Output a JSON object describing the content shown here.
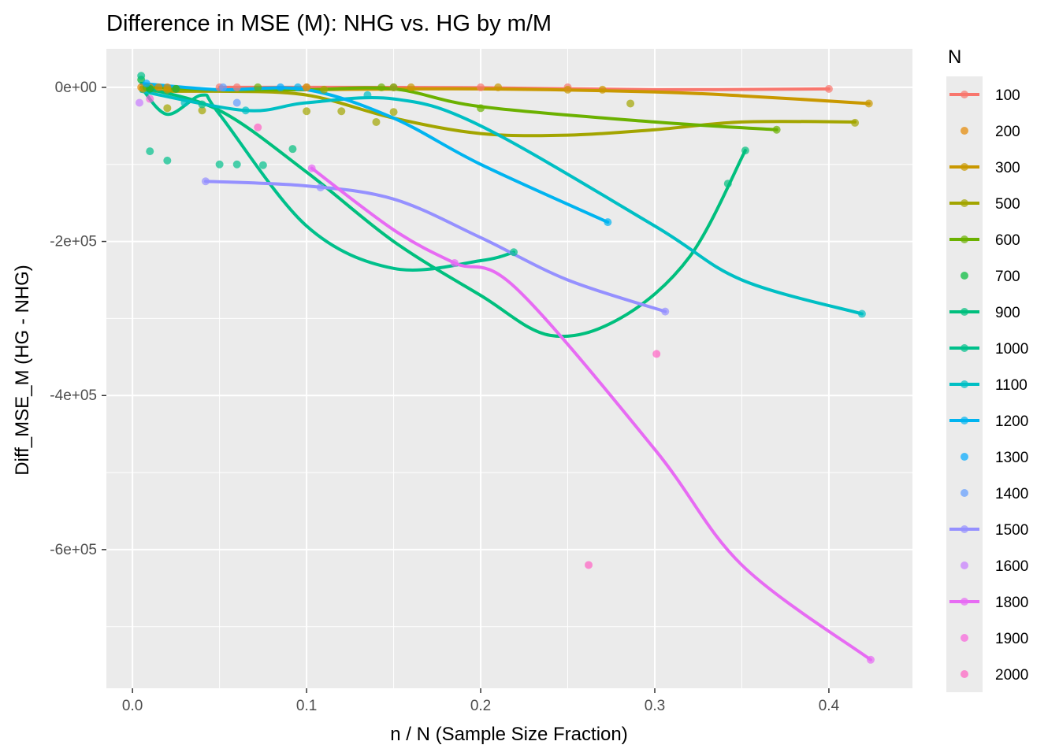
{
  "chart_data": {
    "type": "scatter",
    "title": "Difference in MSE (M): NHG vs. HG by m/M",
    "xlabel": "n / N (Sample Size Fraction)",
    "ylabel": "Diff_MSE_M (HG - NHG)",
    "xlim": [
      -0.015,
      0.448
    ],
    "ylim": [
      -780000,
      50000
    ],
    "x_ticks": [
      0.0,
      0.1,
      0.2,
      0.3,
      0.4
    ],
    "x_tick_labels": [
      "0.0",
      "0.1",
      "0.2",
      "0.3",
      "0.4"
    ],
    "y_ticks": [
      0,
      -200000,
      -400000,
      -600000
    ],
    "y_tick_labels": [
      "0e+00",
      "-2e+05",
      "-4e+05",
      "-6e+05"
    ],
    "grid": true,
    "legend_title": "N",
    "legend_position": "right",
    "series": [
      {
        "name": "100",
        "color": "#F8766D",
        "line": true,
        "points": [
          [
            0.05,
            0
          ],
          [
            0.06,
            0
          ],
          [
            0.1,
            0
          ],
          [
            0.15,
            0
          ],
          [
            0.2,
            0
          ],
          [
            0.25,
            0
          ],
          [
            0.4,
            -2000
          ]
        ],
        "curve": [
          [
            0.05,
            0
          ],
          [
            0.1,
            0
          ],
          [
            0.2,
            -500
          ],
          [
            0.3,
            -3000
          ],
          [
            0.4,
            -2000
          ]
        ]
      },
      {
        "name": "200",
        "color": "#E58700",
        "line": false,
        "points": [
          [
            0.005,
            0
          ],
          [
            0.01,
            0
          ],
          [
            0.015,
            0
          ],
          [
            0.02,
            0
          ],
          [
            0.025,
            -2000
          ]
        ]
      },
      {
        "name": "300",
        "color": "#C99800",
        "line": true,
        "points": [
          [
            0.006,
            -2000
          ],
          [
            0.02,
            -3000
          ],
          [
            0.1,
            0
          ],
          [
            0.16,
            0
          ],
          [
            0.21,
            0
          ],
          [
            0.25,
            -3000
          ],
          [
            0.27,
            -3000
          ],
          [
            0.423,
            -21000
          ]
        ],
        "curve": [
          [
            0.006,
            -5000
          ],
          [
            0.05,
            -5000
          ],
          [
            0.1,
            -3000
          ],
          [
            0.2,
            -2000
          ],
          [
            0.3,
            -6000
          ],
          [
            0.35,
            -11000
          ],
          [
            0.423,
            -21000
          ]
        ]
      },
      {
        "name": "500",
        "color": "#A3A500",
        "line": true,
        "points": [
          [
            0.02,
            -27000
          ],
          [
            0.04,
            -30000
          ],
          [
            0.1,
            -31000
          ],
          [
            0.11,
            -3000
          ],
          [
            0.12,
            -31000
          ],
          [
            0.14,
            -45000
          ],
          [
            0.15,
            -32000
          ],
          [
            0.286,
            -21000
          ],
          [
            0.415,
            -46000
          ]
        ],
        "curve": [
          [
            0.02,
            -5000
          ],
          [
            0.05,
            -5000
          ],
          [
            0.1,
            -10000
          ],
          [
            0.15,
            -40000
          ],
          [
            0.2,
            -60000
          ],
          [
            0.25,
            -62000
          ],
          [
            0.3,
            -55000
          ],
          [
            0.35,
            -45000
          ],
          [
            0.415,
            -45000
          ]
        ]
      },
      {
        "name": "600",
        "color": "#6BB100",
        "line": true,
        "points": [
          [
            0.008,
            0
          ],
          [
            0.072,
            0
          ],
          [
            0.143,
            0
          ],
          [
            0.15,
            0
          ],
          [
            0.2,
            -27000
          ],
          [
            0.37,
            -55000
          ]
        ],
        "curve": [
          [
            0.008,
            0
          ],
          [
            0.05,
            -3000
          ],
          [
            0.1,
            -3000
          ],
          [
            0.15,
            -2000
          ],
          [
            0.2,
            -25000
          ],
          [
            0.3,
            -45000
          ],
          [
            0.37,
            -55000
          ]
        ]
      },
      {
        "name": "700",
        "color": "#00BA38",
        "line": false,
        "points": [
          [
            0.005,
            10000
          ],
          [
            0.01,
            -2000
          ],
          [
            0.025,
            -2000
          ]
        ]
      },
      {
        "name": "900",
        "color": "#00BF7D",
        "line": true,
        "points": [
          [
            0.092,
            -80000
          ],
          [
            0.342,
            -125000
          ],
          [
            0.352,
            -82000
          ]
        ],
        "curve": [
          [
            0.005,
            0
          ],
          [
            0.05,
            -30000
          ],
          [
            0.1,
            -110000
          ],
          [
            0.15,
            -200000
          ],
          [
            0.2,
            -270000
          ],
          [
            0.24,
            -322000
          ],
          [
            0.28,
            -300000
          ],
          [
            0.32,
            -220000
          ],
          [
            0.352,
            -82000
          ]
        ]
      },
      {
        "name": "1000",
        "color": "#00C08B",
        "line": true,
        "points": [
          [
            0.005,
            15000
          ],
          [
            0.01,
            -83000
          ],
          [
            0.02,
            -95000
          ],
          [
            0.04,
            -22000
          ],
          [
            0.05,
            -100000
          ],
          [
            0.06,
            -100000
          ],
          [
            0.075,
            -101000
          ],
          [
            0.219,
            -214000
          ]
        ],
        "curve": [
          [
            0.005,
            0
          ],
          [
            0.02,
            -35000
          ],
          [
            0.04,
            -10000
          ],
          [
            0.05,
            -35000
          ],
          [
            0.1,
            -180000
          ],
          [
            0.15,
            -235000
          ],
          [
            0.2,
            -225000
          ],
          [
            0.219,
            -214000
          ]
        ]
      },
      {
        "name": "1100",
        "color": "#00BFC4",
        "line": true,
        "points": [
          [
            0.03,
            -20000
          ],
          [
            0.065,
            -30000
          ],
          [
            0.135,
            -10000
          ],
          [
            0.419,
            -294000
          ]
        ],
        "curve": [
          [
            0.005,
            -5000
          ],
          [
            0.065,
            -30000
          ],
          [
            0.1,
            -20000
          ],
          [
            0.15,
            -15000
          ],
          [
            0.2,
            -50000
          ],
          [
            0.3,
            -180000
          ],
          [
            0.35,
            -250000
          ],
          [
            0.419,
            -294000
          ]
        ]
      },
      {
        "name": "1200",
        "color": "#00B4F0",
        "line": true,
        "points": [
          [
            0.095,
            0
          ],
          [
            0.273,
            -175000
          ]
        ],
        "curve": [
          [
            0.005,
            5000
          ],
          [
            0.05,
            -3000
          ],
          [
            0.1,
            -3000
          ],
          [
            0.15,
            -40000
          ],
          [
            0.2,
            -100000
          ],
          [
            0.273,
            -175000
          ]
        ]
      },
      {
        "name": "1300",
        "color": "#00A9FF",
        "line": false,
        "points": [
          [
            0.008,
            5000
          ],
          [
            0.085,
            0
          ]
        ]
      },
      {
        "name": "1400",
        "color": "#619CFF",
        "line": false,
        "points": [
          [
            0.052,
            0
          ],
          [
            0.06,
            -20000
          ]
        ]
      },
      {
        "name": "1500",
        "color": "#9590FF",
        "line": true,
        "points": [
          [
            0.042,
            -122000
          ],
          [
            0.108,
            -130000
          ],
          [
            0.306,
            -291000
          ]
        ],
        "curve": [
          [
            0.042,
            -122000
          ],
          [
            0.1,
            -128000
          ],
          [
            0.15,
            -145000
          ],
          [
            0.2,
            -195000
          ],
          [
            0.25,
            -250000
          ],
          [
            0.306,
            -291000
          ]
        ]
      },
      {
        "name": "1600",
        "color": "#C77CFF",
        "line": false,
        "points": [
          [
            0.004,
            -20000
          ]
        ]
      },
      {
        "name": "1800",
        "color": "#E76BF3",
        "line": true,
        "points": [
          [
            0.103,
            -105000
          ],
          [
            0.185,
            -228000
          ],
          [
            0.424,
            -743000
          ]
        ],
        "curve": [
          [
            0.103,
            -105000
          ],
          [
            0.15,
            -185000
          ],
          [
            0.185,
            -228000
          ],
          [
            0.22,
            -260000
          ],
          [
            0.3,
            -470000
          ],
          [
            0.35,
            -620000
          ],
          [
            0.424,
            -743000
          ]
        ]
      },
      {
        "name": "1900",
        "color": "#FA62DB",
        "line": false,
        "points": [
          [
            0.01,
            -15000
          ]
        ]
      },
      {
        "name": "2000",
        "color": "#FF61C3",
        "line": false,
        "points": [
          [
            0.072,
            -52000
          ],
          [
            0.262,
            -620000
          ],
          [
            0.301,
            -346000
          ]
        ]
      }
    ]
  }
}
